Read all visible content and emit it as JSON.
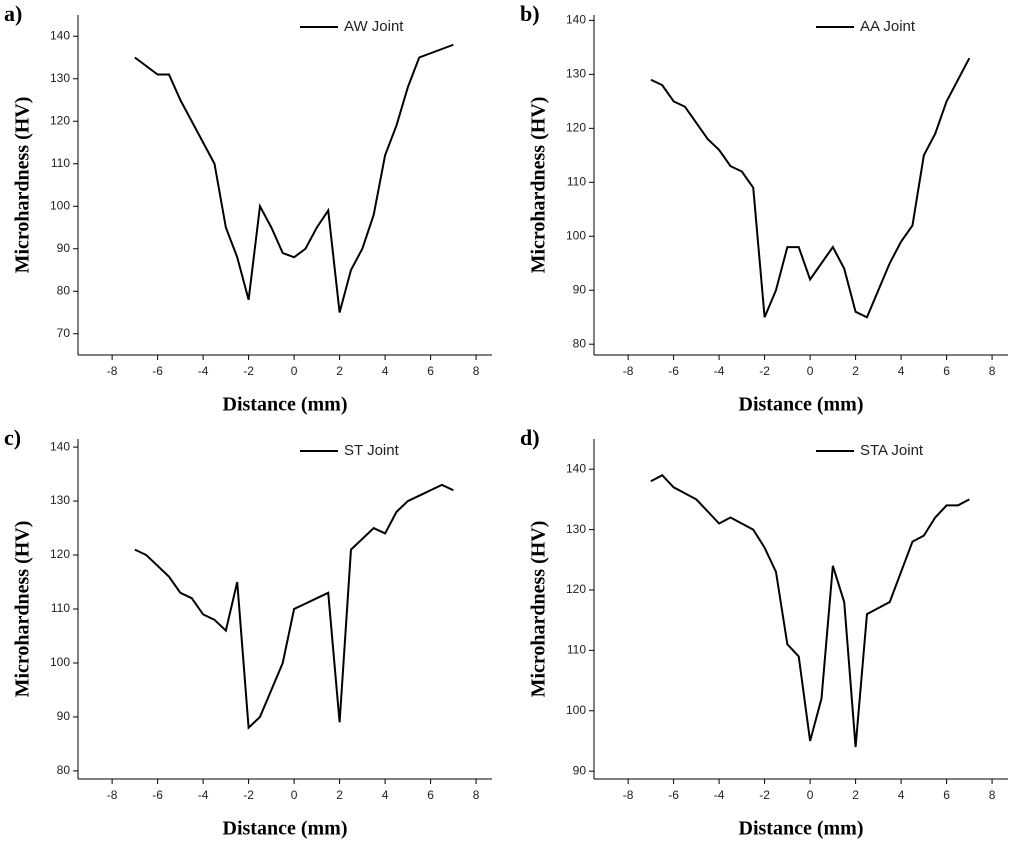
{
  "chart_data": [
    {
      "type": "line",
      "label": "a)",
      "xlabel": "Distance (mm)",
      "ylabel": "Microhardness (HV)",
      "x": [
        -7,
        -6,
        -5.5,
        -5,
        -4.5,
        -4,
        -3.5,
        -3,
        -2.5,
        -2,
        -1.5,
        -1,
        -0.5,
        0,
        0.5,
        1,
        1.5,
        2,
        2.5,
        3,
        3.5,
        4,
        4.5,
        5,
        5.5,
        6,
        7
      ],
      "series": [
        {
          "name": "AW Joint",
          "color": "#000000",
          "values": [
            135,
            131,
            131,
            125,
            120,
            115,
            110,
            95,
            88,
            78,
            100,
            95,
            89,
            88,
            90,
            95,
            99,
            75,
            85,
            90,
            98,
            112,
            119,
            128,
            135,
            136,
            138
          ]
        }
      ],
      "xlim": [
        -9.5,
        8.7
      ],
      "xticks": [
        -8,
        -6,
        -4,
        -2,
        0,
        2,
        4,
        6,
        8
      ],
      "ylim": [
        65,
        145
      ],
      "yticks": [
        70,
        80,
        90,
        100,
        110,
        120,
        130,
        140
      ]
    },
    {
      "type": "line",
      "label": "b)",
      "xlabel": "Distance (mm)",
      "ylabel": "Microhardness (HV)",
      "x": [
        -7,
        -6.5,
        -6,
        -5.5,
        -5,
        -4.5,
        -4,
        -3.5,
        -3,
        -2.5,
        -2,
        -1.5,
        -1,
        -0.5,
        0,
        0.5,
        1,
        1.5,
        2,
        2.5,
        3,
        3.5,
        4,
        4.5,
        5,
        5.5,
        6,
        7
      ],
      "series": [
        {
          "name": "AA Joint",
          "color": "#000000",
          "values": [
            129,
            128,
            125,
            124,
            121,
            118,
            116,
            113,
            112,
            109,
            85,
            90,
            98,
            98,
            92,
            95,
            98,
            94,
            86,
            85,
            90,
            95,
            99,
            102,
            115,
            119,
            125,
            133
          ]
        }
      ],
      "xlim": [
        -9.5,
        8.7
      ],
      "xticks": [
        -8,
        -6,
        -4,
        -2,
        0,
        2,
        4,
        6,
        8
      ],
      "ylim": [
        78,
        141
      ],
      "yticks": [
        80,
        90,
        100,
        110,
        120,
        130,
        140
      ]
    },
    {
      "type": "line",
      "label": "c)",
      "xlabel": "Distance (mm)",
      "ylabel": "Microhardness (HV)",
      "x": [
        -7,
        -6.5,
        -6,
        -5.5,
        -5,
        -4.5,
        -4,
        -3.5,
        -3,
        -2.5,
        -2,
        -1.5,
        -1,
        -0.5,
        0,
        0.5,
        1,
        1.5,
        2,
        2.5,
        3,
        3.5,
        4,
        4.5,
        5,
        5.5,
        6,
        6.5,
        7
      ],
      "series": [
        {
          "name": "ST Joint",
          "color": "#000000",
          "values": [
            121,
            120,
            118,
            116,
            113,
            112,
            109,
            108,
            106,
            115,
            88,
            90,
            95,
            100,
            110,
            111,
            112,
            113,
            89,
            121,
            123,
            125,
            124,
            128,
            130,
            131,
            132,
            133,
            132
          ]
        }
      ],
      "xlim": [
        -9.5,
        8.7
      ],
      "xticks": [
        -8,
        -6,
        -4,
        -2,
        0,
        2,
        4,
        6,
        8
      ],
      "ylim": [
        78.5,
        141.5
      ],
      "yticks": [
        80,
        90,
        100,
        110,
        120,
        130,
        140
      ]
    },
    {
      "type": "line",
      "label": "d)",
      "xlabel": "Distance (mm)",
      "ylabel": "Microhardness (HV)",
      "x": [
        -7,
        -6.5,
        -6,
        -5,
        -4,
        -3.5,
        -2.5,
        -2,
        -1.5,
        -1,
        -0.5,
        0,
        0.5,
        1,
        1.5,
        2,
        2.5,
        3.5,
        4.5,
        5,
        5.5,
        6,
        6.5,
        7
      ],
      "series": [
        {
          "name": "STA Joint",
          "color": "#000000",
          "values": [
            138,
            139,
            137,
            135,
            131,
            132,
            130,
            127,
            123,
            111,
            109,
            95,
            102,
            124,
            118,
            94,
            116,
            118,
            128,
            129,
            132,
            134,
            134,
            135
          ]
        }
      ],
      "xlim": [
        -9.5,
        8.7
      ],
      "xticks": [
        -8,
        -6,
        -4,
        -2,
        0,
        2,
        4,
        6,
        8
      ],
      "ylim": [
        88.7,
        145
      ],
      "yticks": [
        90,
        100,
        110,
        120,
        130,
        140
      ]
    }
  ]
}
